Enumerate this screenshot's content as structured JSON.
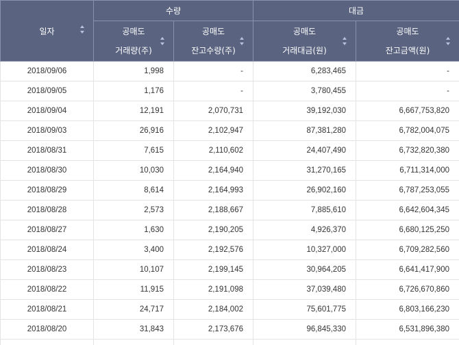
{
  "header": {
    "date": "일자",
    "group_volume": "수량",
    "group_amount": "대금",
    "short_volume_l1": "공매도",
    "short_volume_l2": "거래량(주)",
    "short_balance_l1": "공매도",
    "short_balance_l2": "잔고수량(주)",
    "short_amount_l1": "공매도",
    "short_amount_l2": "거래대금(원)",
    "short_balance_amount_l1": "공매도",
    "short_balance_amount_l2": "잔고금액(원)"
  },
  "rows": [
    {
      "date": "2018/09/06",
      "volume": "1,998",
      "balance": "-",
      "amount": "6,283,465",
      "balance_amount": "-"
    },
    {
      "date": "2018/09/05",
      "volume": "1,176",
      "balance": "-",
      "amount": "3,780,455",
      "balance_amount": "-"
    },
    {
      "date": "2018/09/04",
      "volume": "12,191",
      "balance": "2,070,731",
      "amount": "39,192,030",
      "balance_amount": "6,667,753,820"
    },
    {
      "date": "2018/09/03",
      "volume": "26,916",
      "balance": "2,102,947",
      "amount": "87,381,280",
      "balance_amount": "6,782,004,075"
    },
    {
      "date": "2018/08/31",
      "volume": "7,615",
      "balance": "2,110,602",
      "amount": "24,407,490",
      "balance_amount": "6,732,820,380"
    },
    {
      "date": "2018/08/30",
      "volume": "10,030",
      "balance": "2,164,940",
      "amount": "31,270,165",
      "balance_amount": "6,711,314,000"
    },
    {
      "date": "2018/08/29",
      "volume": "8,614",
      "balance": "2,164,993",
      "amount": "26,902,160",
      "balance_amount": "6,787,253,055"
    },
    {
      "date": "2018/08/28",
      "volume": "2,573",
      "balance": "2,188,667",
      "amount": "7,885,610",
      "balance_amount": "6,642,604,345"
    },
    {
      "date": "2018/08/27",
      "volume": "1,630",
      "balance": "2,190,205",
      "amount": "4,926,370",
      "balance_amount": "6,680,125,250"
    },
    {
      "date": "2018/08/24",
      "volume": "3,400",
      "balance": "2,192,576",
      "amount": "10,327,000",
      "balance_amount": "6,709,282,560"
    },
    {
      "date": "2018/08/23",
      "volume": "10,107",
      "balance": "2,199,145",
      "amount": "30,964,205",
      "balance_amount": "6,641,417,900"
    },
    {
      "date": "2018/08/22",
      "volume": "11,915",
      "balance": "2,191,098",
      "amount": "37,039,480",
      "balance_amount": "6,726,670,860"
    },
    {
      "date": "2018/08/21",
      "volume": "24,717",
      "balance": "2,184,002",
      "amount": "75,601,775",
      "balance_amount": "6,803,166,230"
    },
    {
      "date": "2018/08/20",
      "volume": "31,843",
      "balance": "2,173,676",
      "amount": "96,845,330",
      "balance_amount": "6,531,896,380"
    }
  ],
  "colors": {
    "header_bg": "#5a6481",
    "header_text": "#ffffff",
    "row_border": "#e3e3e3",
    "sort_icon": "#b9c3e0"
  }
}
